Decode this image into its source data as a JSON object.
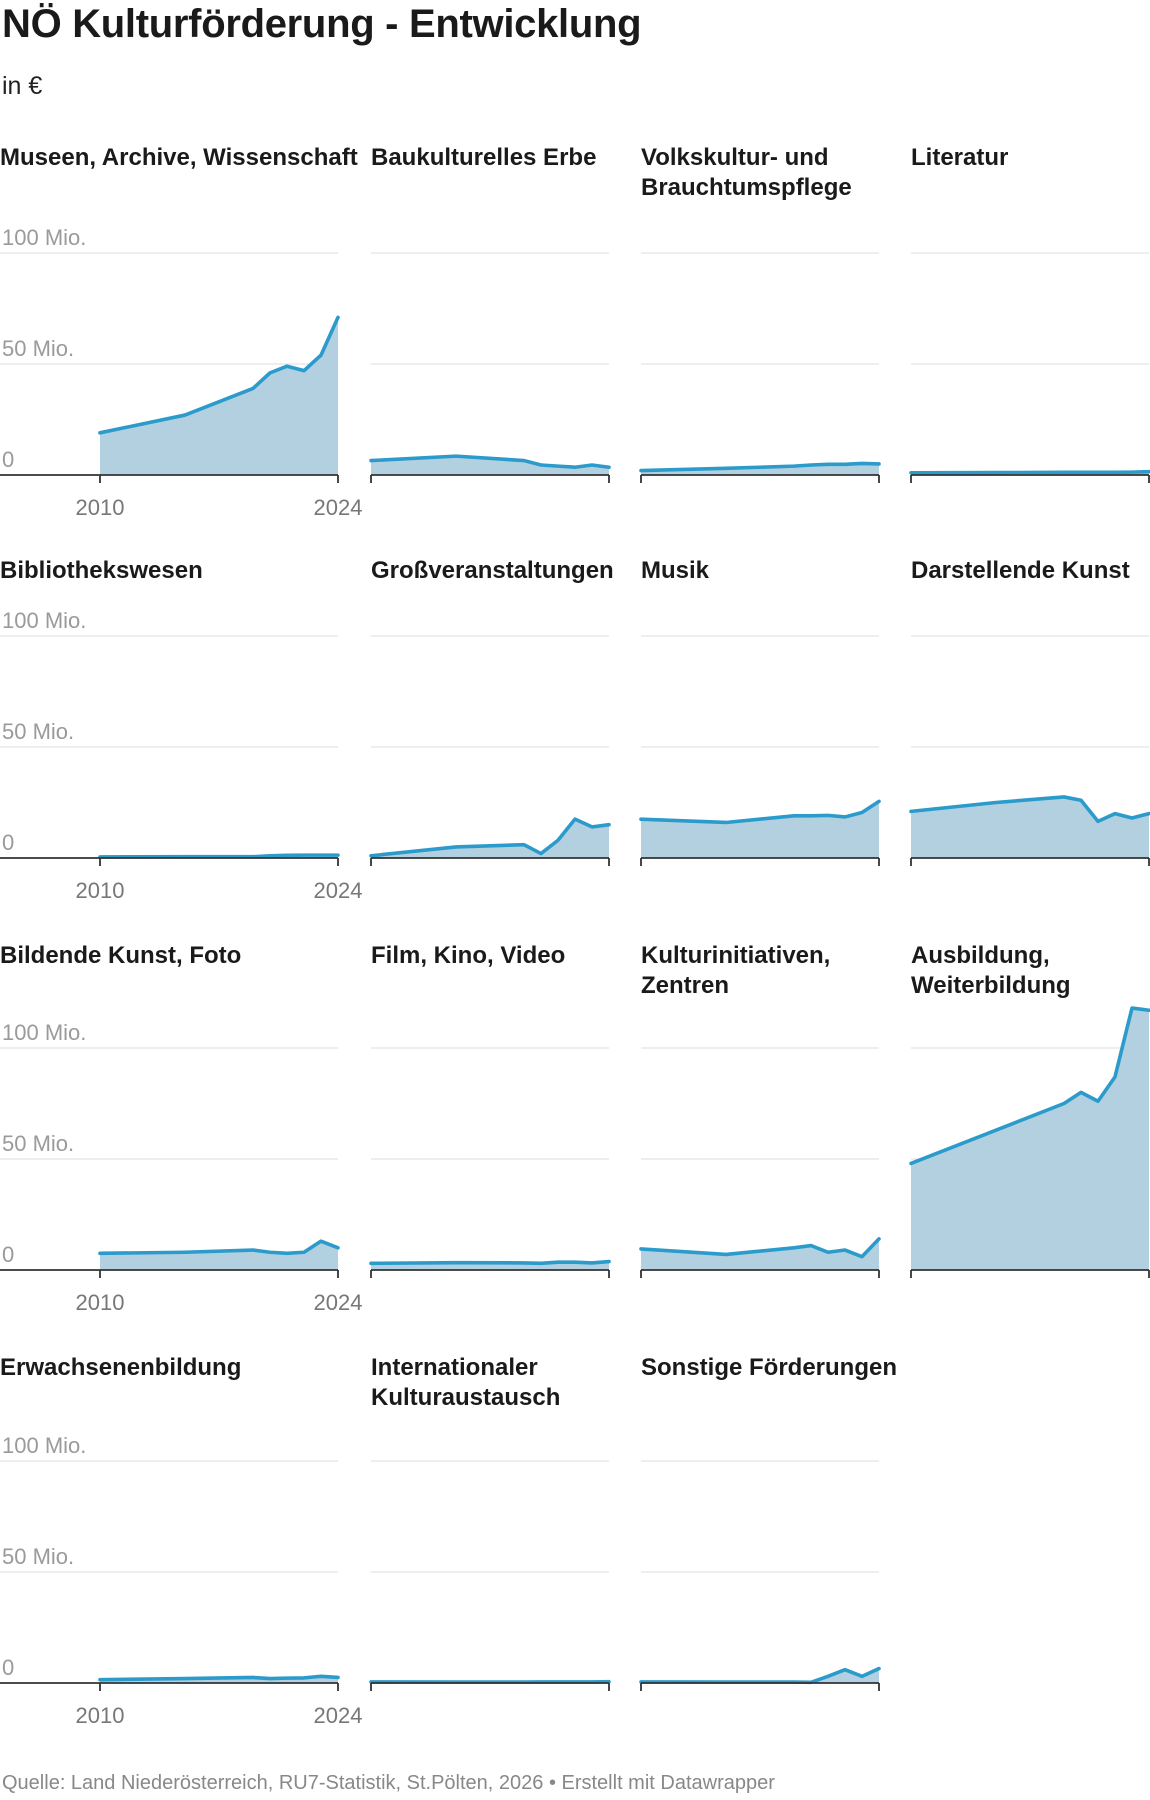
{
  "title": "NÖ Kulturförderung - Entwicklung",
  "subtitle": "in €",
  "footer": "Quelle: Land Niederösterreich, RU7-Statistik, St.Pölten, 2026 • Erstellt mit Datawrapper",
  "colors": {
    "line": "#2b9bcb",
    "area": "#b3d0e0",
    "grid": "#e3e3e3"
  },
  "chart_data": {
    "type": "area",
    "unit": "€",
    "ylim": [
      0,
      100000000
    ],
    "y_ticks": [
      {
        "value": 0,
        "label": "0"
      },
      {
        "value": 50000000,
        "label": "50 Mio."
      },
      {
        "value": 100000000,
        "label": "100 Mio."
      }
    ],
    "x_range": [
      2010,
      2024
    ],
    "x_ticks": [
      {
        "value": 2010,
        "label": "2010"
      },
      {
        "value": 2024,
        "label": "2024"
      }
    ],
    "x": [
      2010,
      2015,
      2019,
      2020,
      2021,
      2022,
      2023,
      2024
    ],
    "panels": [
      {
        "title": "Museen, Archive, Wissenschaft",
        "values": [
          19000000,
          27000000,
          39000000,
          46000000,
          49000000,
          47000000,
          54000000,
          71000000
        ]
      },
      {
        "title": "Baukulturelles Erbe",
        "values": [
          6500000,
          8500000,
          6500000,
          4500000,
          4000000,
          3500000,
          4500000,
          3500000
        ]
      },
      {
        "title": "Volkskultur- und Brauchtumspflege",
        "values": [
          2000000,
          3000000,
          4000000,
          4500000,
          4800000,
          4800000,
          5200000,
          5000000
        ]
      },
      {
        "title": "Literatur",
        "values": [
          1000000,
          1100000,
          1200000,
          1200000,
          1200000,
          1200000,
          1300000,
          1500000
        ]
      },
      {
        "title": "Bibliothekswesen",
        "values": [
          500000,
          600000,
          600000,
          1000000,
          1200000,
          1300000,
          1300000,
          1300000
        ]
      },
      {
        "title": "Großveranstaltungen",
        "values": [
          1000000,
          5000000,
          6000000,
          2000000,
          8000000,
          17500000,
          14000000,
          15000000
        ]
      },
      {
        "title": "Musik",
        "values": [
          17500000,
          16000000,
          19000000,
          19000000,
          19200000,
          18500000,
          20500000,
          25500000
        ]
      },
      {
        "title": "Darstellende Kunst",
        "values": [
          21000000,
          25000000,
          27500000,
          26000000,
          16500000,
          20000000,
          18000000,
          20000000
        ]
      },
      {
        "title": "Bildende Kunst, Foto",
        "values": [
          7500000,
          8000000,
          9000000,
          8000000,
          7500000,
          8000000,
          13000000,
          10000000
        ]
      },
      {
        "title": "Film, Kino, Video",
        "values": [
          3000000,
          3300000,
          3200000,
          3000000,
          3500000,
          3500000,
          3200000,
          3800000
        ]
      },
      {
        "title": "Kulturinitiativen, Zentren",
        "values": [
          9500000,
          7000000,
          10000000,
          11000000,
          8000000,
          9000000,
          6000000,
          14000000
        ]
      },
      {
        "title": "Ausbildung, Weiterbildung",
        "values": [
          48000000,
          63000000,
          75000000,
          80000000,
          76000000,
          87000000,
          118000000,
          117000000
        ]
      },
      {
        "title": "Erwachsenenbildung",
        "values": [
          1500000,
          2000000,
          2500000,
          2000000,
          2200000,
          2300000,
          3000000,
          2500000
        ]
      },
      {
        "title": "Internationaler Kulturaustausch",
        "values": [
          500000,
          400000,
          400000,
          500000,
          500000,
          500000,
          500000,
          600000
        ]
      },
      {
        "title": "Sonstige Förderungen",
        "values": [
          500000,
          400000,
          400000,
          300000,
          3000000,
          6000000,
          3000000,
          6500000
        ]
      }
    ]
  }
}
